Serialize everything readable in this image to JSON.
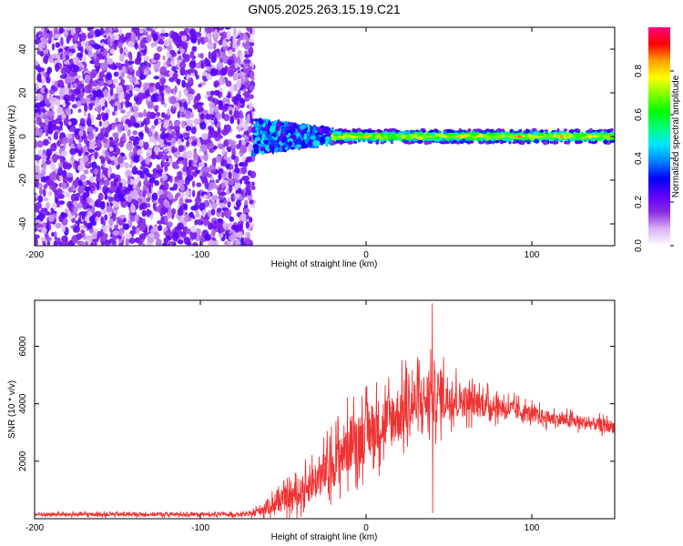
{
  "title": "GN05.2025.263.15.19.C21",
  "chart_data": [
    {
      "type": "heatmap",
      "xlabel": "Height of straight line (km)",
      "ylabel": "Frequency (Hz)",
      "xlim": [
        -200,
        150
      ],
      "ylim": [
        -50,
        50
      ],
      "xticks": [
        -200,
        -100,
        0,
        100
      ],
      "yticks": [
        -40,
        -20,
        0,
        20,
        40
      ],
      "colorbar": {
        "label": "Normalized spectral amplitude",
        "range": [
          0,
          1
        ],
        "ticks": [
          0.0,
          0.2,
          0.4,
          0.6,
          0.8
        ],
        "tick_labels": [
          "0.0",
          "0.2",
          "0.4",
          "0.6",
          "0.8"
        ],
        "colors": [
          "#ffffff",
          "#d9b3f5",
          "#8a2be2",
          "#5a00ff",
          "#0000ff",
          "#0080ff",
          "#00e5ff",
          "#00ff80",
          "#00ff00",
          "#80ff00",
          "#ffff00",
          "#ffa000",
          "#ff0000",
          "#ff0080"
        ]
      },
      "regions": [
        {
          "name": "noise",
          "x": [
            -200,
            -68
          ],
          "freq": [
            -50,
            50
          ],
          "amplitude": [
            0.05,
            0.25
          ]
        },
        {
          "name": "transition",
          "x": [
            -68,
            -20
          ],
          "freq_halfwidth": [
            8,
            3
          ],
          "amplitude": [
            0.2,
            0.5
          ]
        },
        {
          "name": "signal",
          "x": [
            -20,
            150
          ],
          "freq_center": 0,
          "freq_halfwidth": 3,
          "amplitude": [
            0.4,
            0.9
          ]
        }
      ]
    },
    {
      "type": "line",
      "xlabel": "Height of straight line (km)",
      "ylabel": "SNR (10 * v/v)",
      "xlim": [
        -200,
        150
      ],
      "ylim": [
        0,
        7600
      ],
      "xticks": [
        -200,
        -100,
        0,
        100
      ],
      "yticks": [
        2000,
        4000,
        6000
      ],
      "color": "#ee3333",
      "envelope": [
        {
          "x": -200,
          "base": 150,
          "spread": 120
        },
        {
          "x": -70,
          "base": 150,
          "spread": 120
        },
        {
          "x": -60,
          "base": 400,
          "spread": 500
        },
        {
          "x": -40,
          "base": 900,
          "spread": 900
        },
        {
          "x": -25,
          "base": 1600,
          "spread": 1400
        },
        {
          "x": -10,
          "base": 2600,
          "spread": 1800
        },
        {
          "x": 10,
          "base": 3300,
          "spread": 1800
        },
        {
          "x": 30,
          "base": 4000,
          "spread": 1900
        },
        {
          "x": 45,
          "base": 4300,
          "spread": 1700
        },
        {
          "x": 60,
          "base": 4100,
          "spread": 1000
        },
        {
          "x": 80,
          "base": 3900,
          "spread": 700
        },
        {
          "x": 110,
          "base": 3500,
          "spread": 450
        },
        {
          "x": 150,
          "base": 3200,
          "spread": 400
        }
      ],
      "peaks": [
        {
          "x": 40,
          "y": 7500
        },
        {
          "x": 39,
          "y": 5900
        }
      ],
      "dips": [
        {
          "x": 40,
          "y": 200
        }
      ]
    }
  ]
}
